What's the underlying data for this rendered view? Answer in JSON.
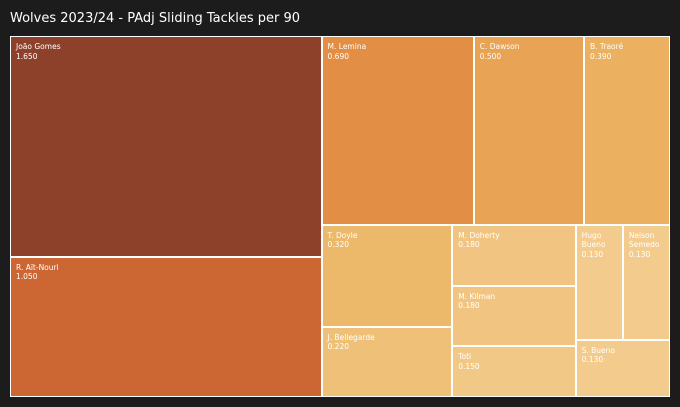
{
  "title": "Wolves 2023/24 - PAdj Sliding Tackles per 90",
  "chart_data": {
    "type": "treemap",
    "title": "Wolves 2023/24 - PAdj Sliding Tackles per 90",
    "items": [
      {
        "label": "João Gomes",
        "value": 1.65,
        "value_text": "1.650",
        "color": "#8d412b",
        "text_color": "#ffffff"
      },
      {
        "label": "R. Aït-Nouri",
        "value": 1.05,
        "value_text": "1.050",
        "color": "#cc6633",
        "text_color": "#ffffff"
      },
      {
        "label": "M. Lemina",
        "value": 0.69,
        "value_text": "0.690",
        "color": "#e28e45",
        "text_color": "#ffffff"
      },
      {
        "label": "C. Dawson",
        "value": 0.5,
        "value_text": "0.500",
        "color": "#e8a355",
        "text_color": "#ffffff"
      },
      {
        "label": "B. Traoré",
        "value": 0.39,
        "value_text": "0.390",
        "color": "#ebb060",
        "text_color": "#ffffff"
      },
      {
        "label": "T. Doyle",
        "value": 0.32,
        "value_text": "0.320",
        "color": "#ecb86a",
        "text_color": "#ffffff"
      },
      {
        "label": "J. Bellegarde",
        "value": 0.22,
        "value_text": "0.220",
        "color": "#efc077",
        "text_color": "#ffffff"
      },
      {
        "label": "M. Doherty",
        "value": 0.18,
        "value_text": "0.180",
        "color": "#f1c581",
        "text_color": "#ffffff"
      },
      {
        "label": "M. Kilman",
        "value": 0.18,
        "value_text": "0.180",
        "color": "#f1c581",
        "text_color": "#ffffff"
      },
      {
        "label": "Toti",
        "value": 0.15,
        "value_text": "0.150",
        "color": "#f2c887",
        "text_color": "#ffffff"
      },
      {
        "label": "Hugo Bueno",
        "value": 0.13,
        "value_text": "0.130",
        "color": "#f3cb8c",
        "text_color": "#ffffff"
      },
      {
        "label": "Nelson Semedo",
        "value": 0.13,
        "value_text": "0.130",
        "color": "#f3cb8c",
        "text_color": "#ffffff"
      },
      {
        "label": "S. Bueno",
        "value": 0.13,
        "value_text": "0.130",
        "color": "#f3cb8c",
        "text_color": "#ffffff"
      }
    ]
  }
}
